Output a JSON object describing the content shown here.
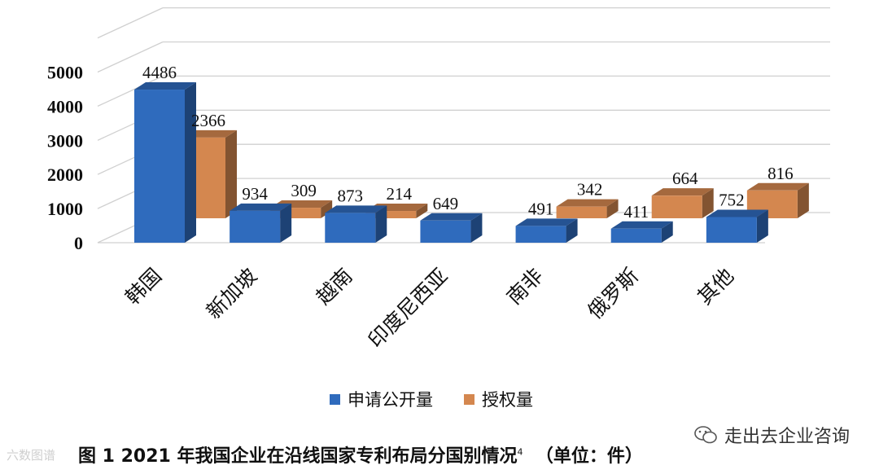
{
  "chart_data": {
    "type": "bar",
    "categories": [
      "韩国",
      "新加坡",
      "越南",
      "印度尼西亚",
      "南非",
      "俄罗斯",
      "其他"
    ],
    "series": [
      {
        "name": "申请公开量",
        "values": [
          4486,
          934,
          873,
          649,
          491,
          411,
          752
        ],
        "color": "#2f6bbd"
      },
      {
        "name": "授权量",
        "values": [
          2366,
          309,
          214,
          null,
          342,
          664,
          816
        ],
        "color": "#d4874f"
      }
    ],
    "ylim": [
      0,
      5000
    ],
    "yticks": [
      "0",
      "1000",
      "2000",
      "3000",
      "4000",
      "5000"
    ],
    "grid": true,
    "legend_position": "bottom",
    "three_d": true
  },
  "caption": {
    "text": "图 1  2021 年我国企业在沿线国家专利布局分国别情况",
    "sup": "4",
    "unit": "（单位：件）"
  },
  "brand": "走出去企业咨询",
  "watermark": "六数图谱"
}
